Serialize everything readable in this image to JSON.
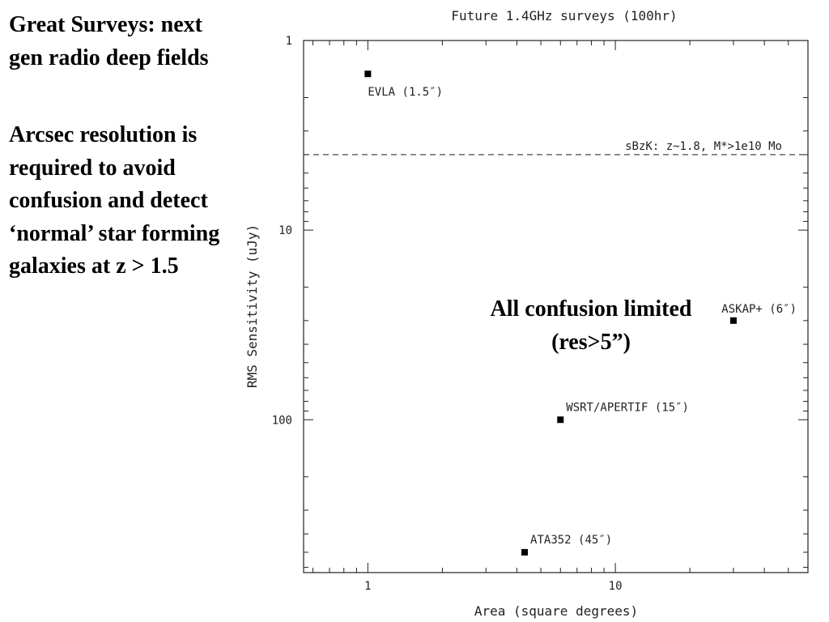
{
  "slide": {
    "title": "Great Surveys: next gen radio deep fields",
    "body": "Arcsec resolution is required to avoid confusion and detect ‘normal’ star forming galaxies at z > 1.5",
    "callout": "All confusion limited (res>5”)"
  },
  "chart_data": {
    "type": "scatter",
    "title": "Future 1.4GHz surveys (100hr)",
    "xlabel": "Area (square degrees)",
    "ylabel": "RMS Sensitivity (uJy)",
    "x_scale": "log",
    "y_scale": "log",
    "y_inverted": true,
    "xlim": [
      0.55,
      60
    ],
    "ylim": [
      1,
      640
    ],
    "x_ticks": [
      {
        "value": 1,
        "label": "1"
      },
      {
        "value": 10,
        "label": "10"
      }
    ],
    "y_ticks": [
      {
        "value": 1,
        "label": "1"
      },
      {
        "value": 10,
        "label": "10"
      },
      {
        "value": 100,
        "label": "100"
      }
    ],
    "grid": false,
    "points": [
      {
        "label": "EVLA (1.5″)",
        "x": 1.0,
        "y": 1.5
      },
      {
        "label": "ASKAP+ (6″)",
        "x": 30,
        "y": 30
      },
      {
        "label": "WSRT/APERTIF (15″)",
        "x": 6,
        "y": 100
      },
      {
        "label": "ATA352 (45″)",
        "x": 4.3,
        "y": 500
      }
    ],
    "reference_lines": [
      {
        "label": "sBzK: z~1.8, M*>1e10 Mo",
        "y": 4.0,
        "style": "dashed"
      }
    ]
  }
}
